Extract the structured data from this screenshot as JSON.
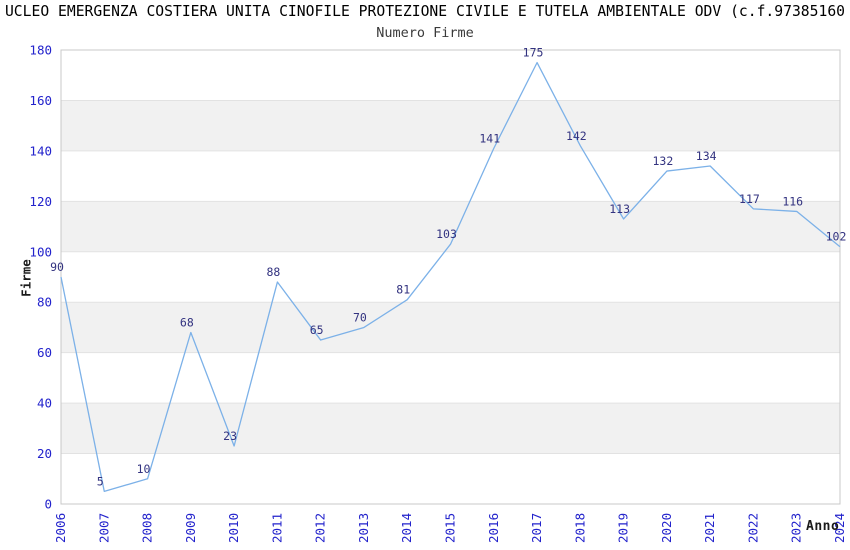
{
  "chart_data": {
    "type": "line",
    "title": "UCLEO EMERGENZA COSTIERA UNITA CINOFILE PROTEZIONE CIVILE E TUTELA AMBIENTALE ODV (c.f.97385160",
    "subtitle": "Numero Firme",
    "xlabel": "Anno",
    "ylabel": "Firme",
    "x": [
      "2006",
      "2007",
      "2008",
      "2009",
      "2010",
      "2011",
      "2012",
      "2013",
      "2014",
      "2015",
      "2016",
      "2017",
      "2018",
      "2019",
      "2020",
      "2021",
      "2022",
      "2023",
      "2024"
    ],
    "series": [
      {
        "name": "Numero Firme",
        "values": [
          90,
          5,
          10,
          68,
          23,
          88,
          65,
          70,
          81,
          103,
          141,
          175,
          142,
          113,
          132,
          134,
          117,
          116,
          102
        ]
      }
    ],
    "ylim": [
      0,
      180
    ],
    "ytick_step": 20,
    "yticks": [
      0,
      20,
      40,
      60,
      80,
      100,
      120,
      140,
      160,
      180
    ],
    "grid": "horizontal alternating bands every 20 units",
    "legend": "none",
    "point_labels_visible": true,
    "colors": {
      "line": "#7cb1e8",
      "tick_labels": "#2323cc",
      "point_labels": "#333380",
      "band_fill": "#f1f1f1",
      "gridline": "#e2e2e2",
      "plot_border": "#c8c8c8",
      "title": "#000000",
      "subtitle": "#3a3a3a",
      "axis_name": "#1a1a1a"
    }
  }
}
